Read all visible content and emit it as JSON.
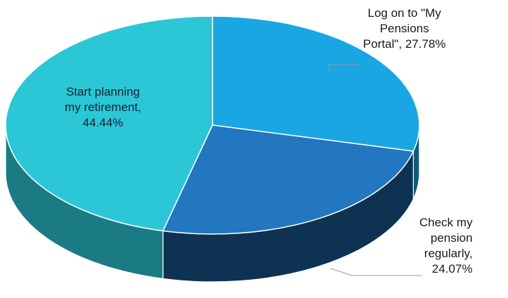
{
  "chart_data": {
    "type": "pie",
    "style": "3d",
    "title": "",
    "legend": "none",
    "slices": [
      {
        "lines": [
          "Start planning",
          "my retirement,",
          "44.44%"
        ],
        "value": 44.44,
        "color": "#2cc7d6"
      },
      {
        "lines": [
          "Log on to \"My",
          "Pensions",
          "Portal\", 27.78%"
        ],
        "value": 27.78,
        "color": "#19a6e3"
      },
      {
        "lines": [
          "Check my",
          "pension",
          "regularly,",
          "24.07%"
        ],
        "value": 24.07,
        "color": "#2277c0"
      }
    ]
  }
}
